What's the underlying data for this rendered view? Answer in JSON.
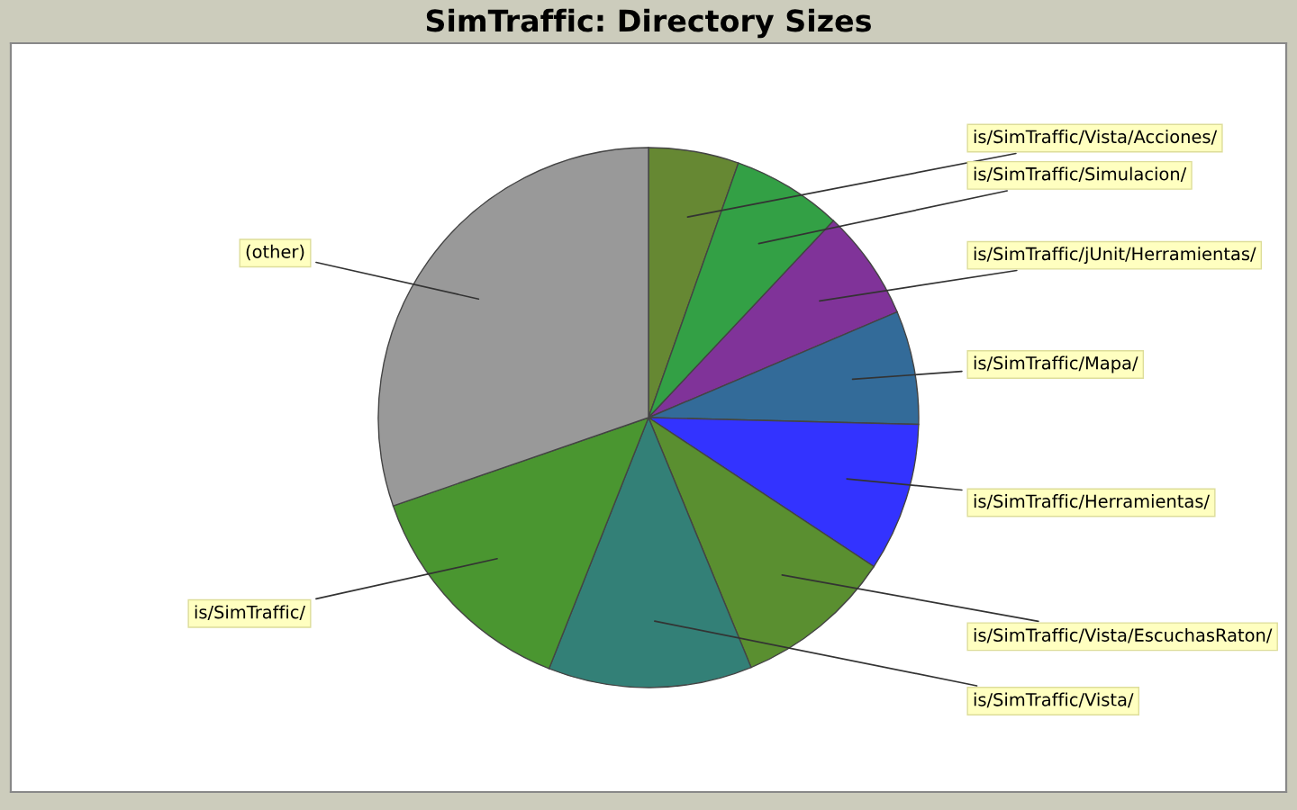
{
  "chart_data": {
    "type": "pie",
    "title": "SimTraffic: Directory Sizes",
    "categories": [
      "is/SimTraffic/Vista/Acciones/",
      "is/SimTraffic/Simulacion/",
      "is/SimTraffic/jUnit/Herramientas/",
      "is/SimTraffic/Mapa/",
      "is/SimTraffic/Herramientas/",
      "is/SimTraffic/Vista/EscuchasRaton/",
      "is/SimTraffic/Vista/",
      "is/SimTraffic/",
      "(other)"
    ],
    "values": [
      5.4,
      6.6,
      6.6,
      6.8,
      8.9,
      9.5,
      12.2,
      13.7,
      30.3
    ],
    "colors": [
      "#668833",
      "#33a045",
      "#803399",
      "#336b99",
      "#3333ff",
      "#5a8f30",
      "#338077",
      "#4a9630",
      "#999999"
    ],
    "legend": false
  }
}
